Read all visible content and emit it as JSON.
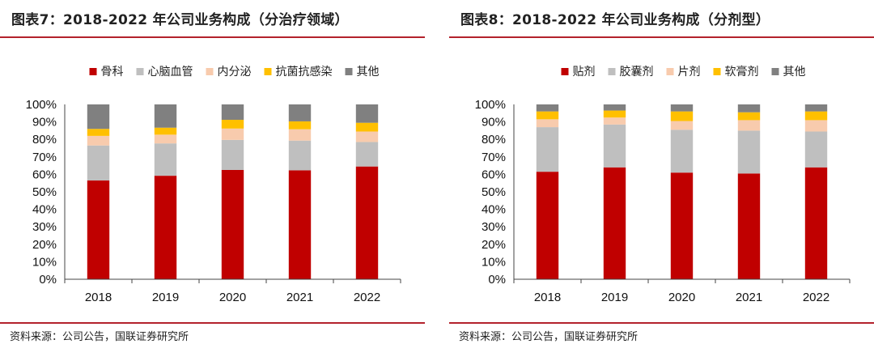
{
  "panels": [
    {
      "title": "图表7：2018-2022 年公司业务构成（分治疗领域）",
      "source": "资料来源：公司公告，国联证券研究所",
      "chart_data": {
        "type": "bar",
        "stacked": true,
        "percent": true,
        "title": "图表7：2018-2022 年公司业务构成（分治疗领域）",
        "xlabel": "",
        "ylabel": "",
        "ylim": [
          0,
          100
        ],
        "yticks": [
          "0%",
          "10%",
          "20%",
          "30%",
          "40%",
          "50%",
          "60%",
          "70%",
          "80%",
          "90%",
          "100%"
        ],
        "categories": [
          "2018",
          "2019",
          "2020",
          "2021",
          "2022"
        ],
        "legend_position": "top",
        "series": [
          {
            "name": "骨科",
            "color": "#c00000",
            "values": [
              56.5,
              59.2,
              62.5,
              62.3,
              64.5
            ]
          },
          {
            "name": "心脑血管",
            "color": "#bfbfbf",
            "values": [
              20.0,
              18.5,
              17.2,
              17.0,
              14.0
            ]
          },
          {
            "name": "内分泌",
            "color": "#f8cbad",
            "values": [
              5.5,
              5.0,
              6.5,
              6.5,
              6.0
            ]
          },
          {
            "name": "抗菌抗感染",
            "color": "#ffc000",
            "values": [
              4.0,
              4.0,
              5.0,
              4.5,
              5.0
            ]
          },
          {
            "name": "其他",
            "color": "#808080",
            "values": [
              14.0,
              13.3,
              8.8,
              9.7,
              10.5
            ]
          }
        ]
      }
    },
    {
      "title": "图表8：2018-2022 年公司业务构成（分剂型）",
      "source": "资料来源：公司公告，国联证券研究所",
      "chart_data": {
        "type": "bar",
        "stacked": true,
        "percent": true,
        "title": "图表8：2018-2022 年公司业务构成（分剂型）",
        "xlabel": "",
        "ylabel": "",
        "ylim": [
          0,
          100
        ],
        "yticks": [
          "0%",
          "10%",
          "20%",
          "30%",
          "40%",
          "50%",
          "60%",
          "70%",
          "80%",
          "90%",
          "100%"
        ],
        "categories": [
          "2018",
          "2019",
          "2020",
          "2021",
          "2022"
        ],
        "legend_position": "top",
        "series": [
          {
            "name": "贴剂",
            "color": "#c00000",
            "values": [
              61.5,
              64.0,
              61.0,
              60.5,
              64.0
            ]
          },
          {
            "name": "胶囊剂",
            "color": "#bfbfbf",
            "values": [
              25.5,
              24.5,
              24.5,
              24.5,
              20.5
            ]
          },
          {
            "name": "片剂",
            "color": "#f8cbad",
            "values": [
              4.5,
              4.0,
              5.0,
              6.0,
              6.5
            ]
          },
          {
            "name": "软膏剂",
            "color": "#ffc000",
            "values": [
              4.5,
              4.0,
              5.5,
              4.5,
              5.0
            ]
          },
          {
            "name": "其他",
            "color": "#808080",
            "values": [
              4.0,
              3.5,
              4.0,
              4.5,
              4.0
            ]
          }
        ]
      }
    }
  ]
}
